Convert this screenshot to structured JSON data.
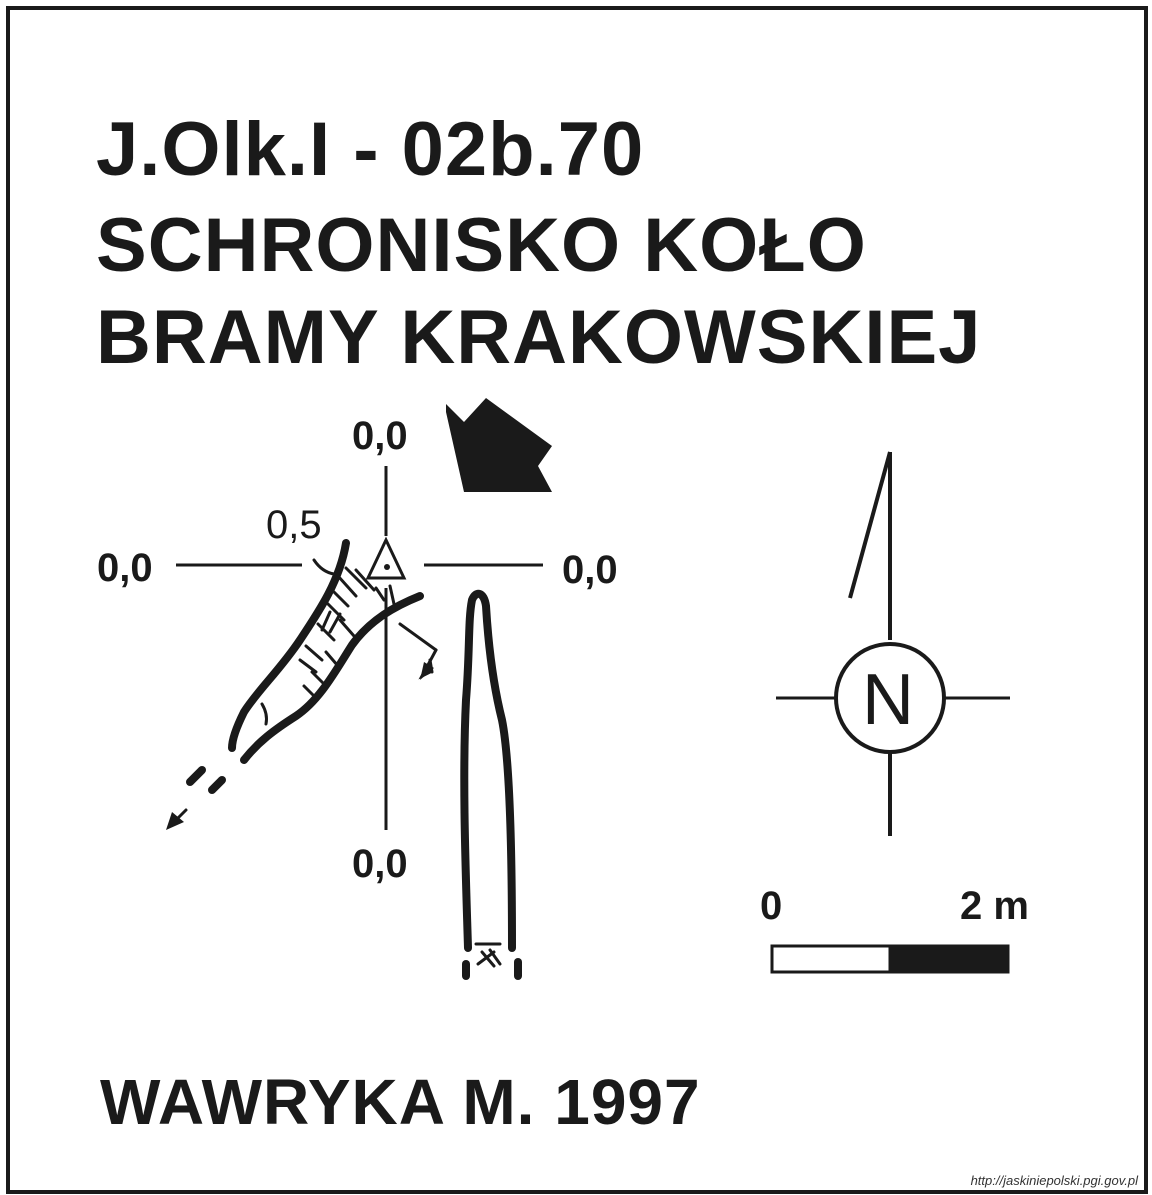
{
  "title": {
    "line1": "J.Olk.I - 02b.70",
    "line2": "SCHRONISKO KOŁO",
    "line3": "BRAMY KRAKOWSKIEJ"
  },
  "depths": {
    "top": "0,0",
    "left": "0,0",
    "right": "0,0",
    "bottom": "0,0",
    "inner": "0,5"
  },
  "compass": {
    "letter": "N"
  },
  "scale": {
    "start": "0",
    "end": "2 m"
  },
  "author": "WAWRYKA M. 1997",
  "source": "http://jaskiniepolski.pgi.gov.pl",
  "colors": {
    "ink": "#1a1a1a",
    "paper": "#ffffff"
  },
  "icons": [
    "entrance-arrow-icon",
    "survey-point-triangle-icon",
    "north-arrow-icon"
  ]
}
